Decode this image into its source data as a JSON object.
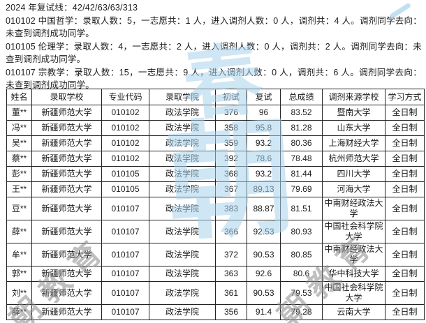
{
  "page": {
    "intro_lines": [
      "2024 年复试线：42/42/63/63/313",
      "010102 中国哲学：录取人数：5，一志愿共：1 人，进入调剂人数：0 人，调剂共：4 人。调剂同学去向：未查到调剂成功同学。",
      "010105 伦理学：录取人数：4，一志愿共：2 人，进入调剂人数：0 人，调剂共：2 人。调剂同学去向：未查到调剂成功同学。",
      "010107 宗教学：录取人数：15，一志愿共：9 人，进入调剂人数：0 人，调剂共：6 人。调剂同学去向：未查到调剂成功同学。"
    ]
  },
  "table": {
    "headers": [
      "姓名",
      "录取学校",
      "专业代码",
      "录取学院",
      "初试",
      "复试",
      "总成绩",
      "调剂来源学校",
      "学习方式"
    ],
    "rows": [
      [
        "董**",
        "新疆师范大学",
        "010102",
        "政法学院",
        "376",
        "96",
        "83.52",
        "暨南大学",
        "全日制"
      ],
      [
        "冯**",
        "新疆师范大学",
        "010102",
        "政法学院",
        "358",
        "95.8",
        "81.28",
        "山东大学",
        "全日制"
      ],
      [
        "吴**",
        "新疆师范大学",
        "010102",
        "政法学院",
        "359",
        "93.2",
        "80.36",
        "上海财经大学",
        "全日制"
      ],
      [
        "蔡**",
        "新疆师范大学",
        "010102",
        "政法学院",
        "392",
        "78.6",
        "78.48",
        "杭州师范大学",
        "全日制"
      ],
      [
        "彭**",
        "新疆师范大学",
        "010105",
        "政法学院",
        "368",
        "93.2",
        "81.44",
        "四川大学",
        "全日制"
      ],
      [
        "王**",
        "新疆师范大学",
        "010105",
        "政法学院",
        "367",
        "89.13",
        "79.69",
        "河海大学",
        "全日制"
      ],
      [
        "豆**",
        "新疆师范大学",
        "010107",
        "政法学院",
        "383",
        "88.87",
        "81.51",
        "中南财经政法大学",
        "全日制"
      ],
      [
        "薛**",
        "新疆师范大学",
        "010107",
        "政法学院",
        "366",
        "92.53",
        "80.93",
        "中国社会科学院大学",
        "全日制"
      ],
      [
        "牟**",
        "新疆师范大学",
        "010107",
        "政法学院",
        "372",
        "90.53",
        "80.85",
        "中南财经政法大学",
        "全日制"
      ],
      [
        "郭**",
        "新疆师范大学",
        "010107",
        "政法学院",
        "363",
        "92.6",
        "80.6",
        "华中科技大学",
        "全日制"
      ],
      [
        "刘**",
        "新疆师范大学",
        "010107",
        "政法学院",
        "361",
        "90.53",
        "79.53",
        "中国社会科学院大学",
        "全日制"
      ],
      [
        "薛**",
        "新疆师范大学",
        "010107",
        "政法学院",
        "356",
        "91.4",
        "79.28",
        "云南大学",
        "全日制"
      ]
    ]
  },
  "watermarks": {
    "gray_text": "朝教育",
    "blue_glyphs": [
      "春",
      "朝"
    ],
    "blue_color": "#a9d2ec",
    "gray_color": "#8b8b8b"
  }
}
